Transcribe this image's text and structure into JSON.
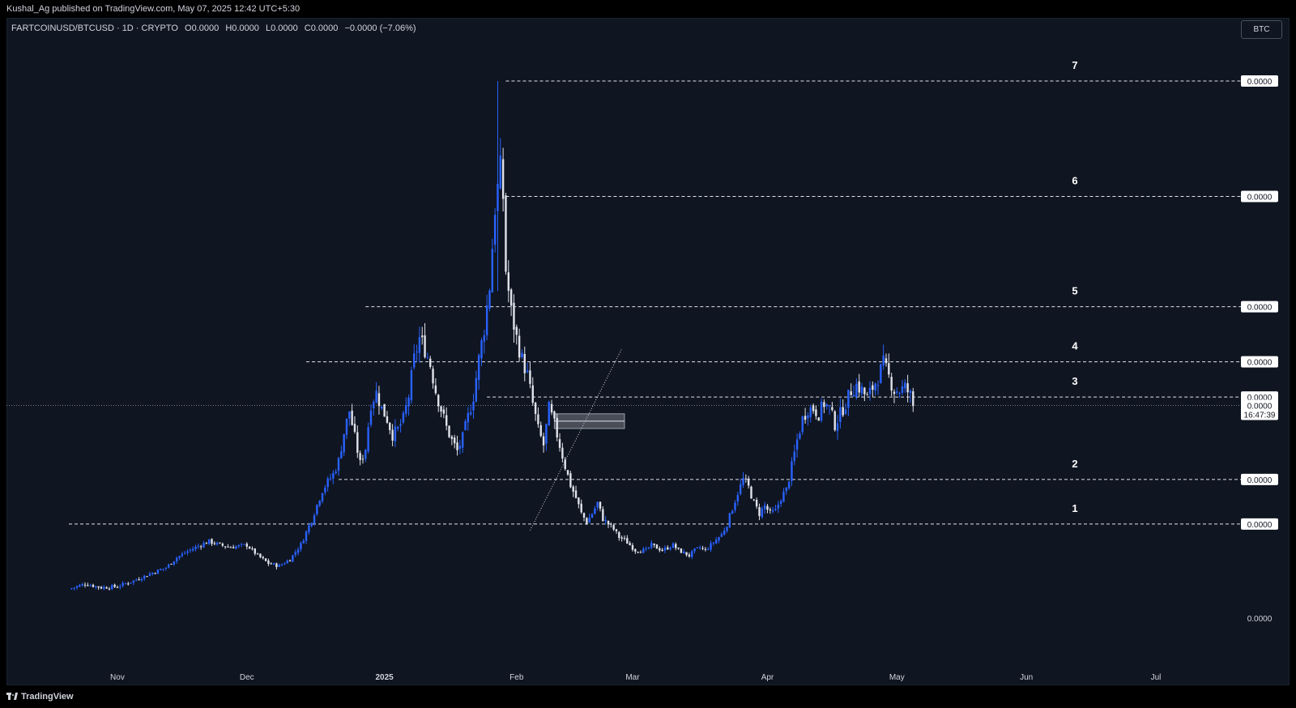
{
  "header": {
    "publish_line": "Kushal_Ag published on TradingView.com, May 07, 2025 12:42 UTC+5:30"
  },
  "legend": {
    "symbol": "FARTCOINUSD/BTCUSD · 1D · CRYPTO",
    "open": "O0.0000",
    "high": "H0.0000",
    "low": "L0.0000",
    "close": "C0.0000",
    "change": "−0.0000 (−7.06%)"
  },
  "toolbar": {
    "currency_label": "BTC"
  },
  "footer": {
    "brand": "TradingView"
  },
  "colors": {
    "up": "#2962ff",
    "down": "#e0e3eb",
    "background": "#0f1521",
    "line": "#d1d4dc"
  },
  "chart_data": {
    "type": "candlestick",
    "xaxis_ticks": [
      "Nov",
      "Dec",
      "2025",
      "Feb",
      "Mar",
      "Apr",
      "May",
      "Jun",
      "Jul"
    ],
    "price_axis_bottom_label": "0.0000",
    "current_price": "0.0000",
    "countdown": "16:47:39",
    "levels": [
      {
        "label": "7",
        "price": "0.0000",
        "value": 100
      },
      {
        "label": "6",
        "price": "0.0000",
        "value": 78
      },
      {
        "label": "5",
        "price": "0.0000",
        "value": 57
      },
      {
        "label": "4",
        "price": "0.0000",
        "value": 46.5
      },
      {
        "label": "3",
        "price": "0.0000",
        "value": 39.8
      },
      {
        "label": "2",
        "price": "0.0000",
        "value": 24.1
      },
      {
        "label": "1",
        "price": "0.0000",
        "value": 15.6
      }
    ],
    "current_value": 38.2,
    "y_range": [
      0,
      110
    ],
    "x_range_days": [
      0,
      270
    ],
    "zone": {
      "day_start": 180,
      "day_end": 206,
      "low": 33.8,
      "high": 36.6
    },
    "trendline": {
      "from": [
        171,
        14.4
      ],
      "to": [
        205,
        49
      ]
    },
    "price_path": [
      [
        0,
        3.2
      ],
      [
        6,
        4.2
      ],
      [
        12,
        3.5
      ],
      [
        18,
        3.7
      ],
      [
        24,
        4.8
      ],
      [
        30,
        6.1
      ],
      [
        36,
        7.3
      ],
      [
        40,
        9.2
      ],
      [
        44,
        10.4
      ],
      [
        48,
        11.4
      ],
      [
        52,
        12.3
      ],
      [
        56,
        11.6
      ],
      [
        60,
        11.2
      ],
      [
        66,
        11.6
      ],
      [
        70,
        9.6
      ],
      [
        74,
        8.1
      ],
      [
        78,
        7.6
      ],
      [
        82,
        8.9
      ],
      [
        86,
        11.7
      ],
      [
        90,
        16.4
      ],
      [
        94,
        22.1
      ],
      [
        98,
        25.1
      ],
      [
        100,
        27.6
      ],
      [
        102,
        33.0
      ],
      [
        104,
        37.2
      ],
      [
        106,
        32.1
      ],
      [
        108,
        27.1
      ],
      [
        110,
        30.1
      ],
      [
        112,
        38.6
      ],
      [
        114,
        40.6
      ],
      [
        116,
        37.6
      ],
      [
        118,
        35.6
      ],
      [
        120,
        32.6
      ],
      [
        122,
        33.6
      ],
      [
        124,
        35.6
      ],
      [
        126,
        40.0
      ],
      [
        128,
        47.0
      ],
      [
        130,
        51.0
      ],
      [
        132,
        49.0
      ],
      [
        134,
        46.0
      ],
      [
        136,
        41.0
      ],
      [
        138,
        37.5
      ],
      [
        140,
        34.0
      ],
      [
        142,
        31.5
      ],
      [
        144,
        29.5
      ],
      [
        146,
        32.0
      ],
      [
        148,
        36.0
      ],
      [
        150,
        40.0
      ],
      [
        152,
        47.0
      ],
      [
        154,
        53.0
      ],
      [
        156,
        61.0
      ],
      [
        158,
        76.0
      ],
      [
        160,
        83.0
      ],
      [
        161,
        78.0
      ],
      [
        162,
        64.0
      ],
      [
        164,
        56.0
      ],
      [
        166,
        51.0
      ],
      [
        168,
        47.0
      ],
      [
        170,
        44.0
      ],
      [
        172,
        38.5
      ],
      [
        174,
        33.6
      ],
      [
        176,
        30.6
      ],
      [
        178,
        37.6
      ],
      [
        180,
        34.6
      ],
      [
        182,
        30.6
      ],
      [
        184,
        26.6
      ],
      [
        186,
        23.0
      ],
      [
        188,
        20.6
      ],
      [
        190,
        17.6
      ],
      [
        192,
        16.0
      ],
      [
        194,
        17.6
      ],
      [
        196,
        19.6
      ],
      [
        198,
        16.6
      ],
      [
        200,
        15.6
      ],
      [
        202,
        14.6
      ],
      [
        204,
        13.1
      ],
      [
        206,
        12.6
      ],
      [
        208,
        11.6
      ],
      [
        210,
        10.6
      ],
      [
        212,
        10.6
      ],
      [
        214,
        10.6
      ],
      [
        216,
        11.6
      ],
      [
        218,
        11.1
      ],
      [
        220,
        10.6
      ],
      [
        222,
        11.1
      ],
      [
        224,
        11.6
      ],
      [
        226,
        10.6
      ],
      [
        228,
        10.1
      ],
      [
        230,
        9.6
      ],
      [
        232,
        10.6
      ],
      [
        234,
        11.1
      ],
      [
        236,
        10.6
      ],
      [
        238,
        11.6
      ],
      [
        240,
        12.6
      ],
      [
        242,
        13.6
      ],
      [
        244,
        15.6
      ],
      [
        246,
        18.6
      ],
      [
        248,
        21.6
      ],
      [
        250,
        24.1
      ],
      [
        252,
        22.6
      ],
      [
        254,
        19.6
      ],
      [
        256,
        17.6
      ],
      [
        258,
        19.1
      ],
      [
        260,
        17.6
      ],
      [
        262,
        18.1
      ],
      [
        264,
        20.6
      ],
      [
        266,
        22.1
      ],
      [
        268,
        26.6
      ],
      [
        270,
        31.6
      ],
      [
        272,
        35.6
      ],
      [
        274,
        37.6
      ],
      [
        276,
        37.6
      ],
      [
        278,
        36.6
      ],
      [
        280,
        38.6
      ],
      [
        282,
        37.6
      ],
      [
        284,
        34.6
      ],
      [
        286,
        36.6
      ],
      [
        288,
        38.6
      ],
      [
        290,
        41.1
      ],
      [
        292,
        42.1
      ],
      [
        294,
        41.1
      ],
      [
        296,
        39.6
      ],
      [
        298,
        41.6
      ],
      [
        300,
        43.6
      ],
      [
        302,
        46.1
      ],
      [
        304,
        43.6
      ],
      [
        306,
        41.1
      ],
      [
        308,
        41.1
      ],
      [
        310,
        41.6
      ],
      [
        312,
        40.1
      ],
      [
        313,
        38.1
      ]
    ]
  }
}
